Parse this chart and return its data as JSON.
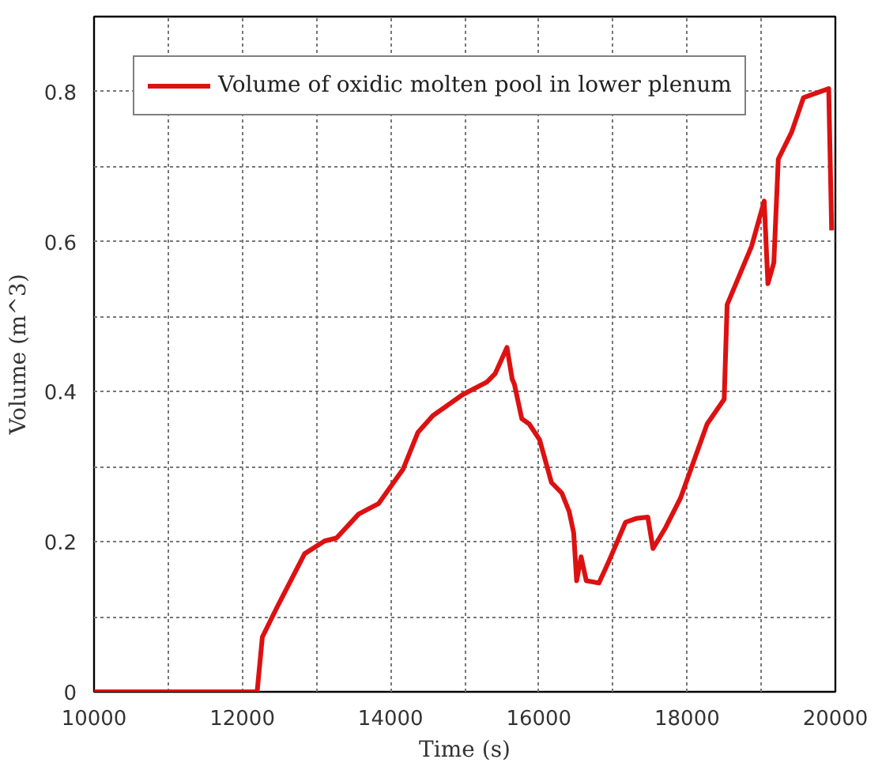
{
  "chart_data": {
    "type": "line",
    "xlabel": "Time (s)",
    "ylabel": "Volume (m^3)",
    "xlim": [
      10000,
      20000
    ],
    "ylim": [
      0,
      0.9
    ],
    "xticks": [
      10000,
      {
        "value": 11000,
        "label": null
      },
      12000,
      {
        "value": 13000,
        "label": null
      },
      14000,
      {
        "value": 15000,
        "label": null
      },
      16000,
      {
        "value": 17000,
        "label": null
      },
      18000,
      {
        "value": 19000,
        "label": null
      },
      20000
    ],
    "yticks": [
      0,
      {
        "value": 0.1,
        "label": null
      },
      0.2,
      {
        "value": 0.3,
        "label": null
      },
      0.4,
      {
        "value": 0.5,
        "label": null
      },
      0.6,
      {
        "value": 0.7,
        "label": null
      },
      0.8
    ],
    "grid": true,
    "legend": "top left",
    "line_style": "solid",
    "series": [
      {
        "name": "Volume of oxidic molten pool in lower plenum",
        "color": "#dd1111",
        "x": [
          10000,
          12200,
          12270,
          12470,
          12840,
          13110,
          13270,
          13570,
          13840,
          14170,
          14370,
          14570,
          14970,
          15300,
          15410,
          15570,
          15640,
          15670,
          15770,
          15870,
          16010,
          16170,
          16310,
          16410,
          16470,
          16510,
          16570,
          16640,
          16810,
          16940,
          17170,
          17310,
          17470,
          17540,
          17710,
          17910,
          18270,
          18500,
          18540,
          18870,
          19040,
          19090,
          19170,
          19230,
          19410,
          19570,
          19910,
          19950
        ],
        "values": [
          0,
          0,
          0.073,
          0.113,
          0.184,
          0.201,
          0.205,
          0.237,
          0.251,
          0.297,
          0.346,
          0.368,
          0.396,
          0.413,
          0.424,
          0.459,
          0.417,
          0.41,
          0.364,
          0.357,
          0.336,
          0.279,
          0.265,
          0.24,
          0.212,
          0.148,
          0.18,
          0.148,
          0.145,
          0.173,
          0.226,
          0.231,
          0.233,
          0.191,
          0.219,
          0.258,
          0.357,
          0.39,
          0.516,
          0.594,
          0.654,
          0.544,
          0.572,
          0.71,
          0.746,
          0.792,
          0.804,
          0.615
        ]
      }
    ]
  }
}
